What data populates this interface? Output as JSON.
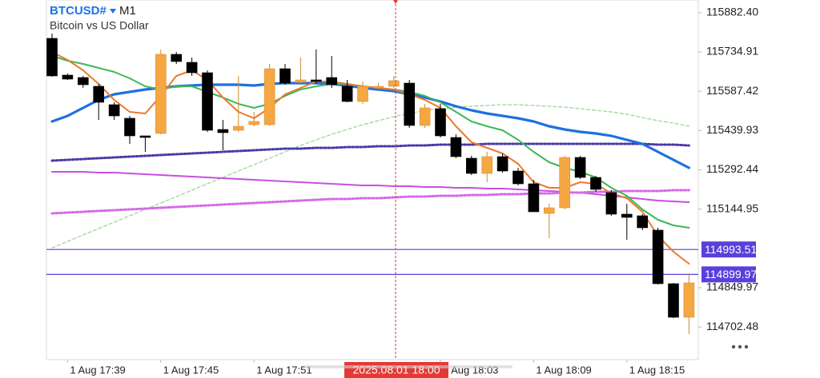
{
  "chart_data": {
    "type": "candlestick",
    "title": "BTCUSD#",
    "timeframe": "M1",
    "subtitle": "Bitcoin vs US Dollar",
    "crosshair_label": "2025.08.01 18:00",
    "categories": [
      null,
      "1 Aug 17:39",
      null,
      null,
      null,
      null,
      null,
      "1 Aug 17:45",
      null,
      null,
      null,
      null,
      null,
      "1 Aug 17:51",
      null,
      null,
      null,
      null,
      null,
      null,
      null,
      null,
      null,
      null,
      null,
      "1 Aug 18:03",
      null,
      null,
      null,
      null,
      null,
      "1 Aug 18:09",
      null,
      null,
      null,
      null,
      null,
      "1 Aug 18:15",
      null,
      null,
      null,
      null
    ],
    "open": [
      115786,
      115648,
      115639,
      115606,
      115537,
      115486,
      115420,
      115429,
      115726,
      115696,
      115657,
      115444,
      115441,
      115462,
      115462,
      115672,
      115621,
      115630,
      115639,
      115606,
      115549,
      115600,
      115606,
      115618,
      115459,
      115522,
      115414,
      115336,
      115279,
      115342,
      115288,
      115240,
      115129,
      115150,
      115339,
      115264,
      115207,
      115126,
      115120,
      115066,
      114865,
      114739
    ],
    "high": [
      115804,
      115654,
      115645,
      115615,
      115546,
      115495,
      115420,
      115744,
      115735,
      115714,
      115666,
      115480,
      115645,
      115510,
      115690,
      115690,
      115714,
      115744,
      115720,
      115630,
      115624,
      115618,
      115645,
      115630,
      115540,
      115540,
      115426,
      115345,
      115360,
      115354,
      115300,
      115255,
      115165,
      115345,
      115345,
      115270,
      115216,
      115165,
      115126,
      115075,
      114868,
      114904
    ],
    "low": [
      115642,
      115630,
      115600,
      115480,
      115480,
      115390,
      115360,
      115426,
      115690,
      115645,
      115435,
      115366,
      115435,
      115456,
      115456,
      115612,
      115618,
      115615,
      115600,
      115546,
      115540,
      115594,
      115600,
      115450,
      115450,
      115414,
      115336,
      115273,
      115246,
      115282,
      115234,
      115135,
      115036,
      115144,
      115258,
      115210,
      115120,
      115030,
      115066,
      114862,
      114736,
      114676
    ],
    "close": [
      115645,
      115633,
      115612,
      115546,
      115495,
      115420,
      115414,
      115726,
      115699,
      115657,
      115441,
      115432,
      115456,
      115474,
      115672,
      115618,
      115630,
      115624,
      115612,
      115549,
      115606,
      115606,
      115627,
      115459,
      115525,
      115420,
      115342,
      115279,
      115342,
      115288,
      115240,
      115135,
      115150,
      115339,
      115264,
      115219,
      115126,
      115114,
      115075,
      114865,
      114739,
      114868
    ],
    "up_color": "#f5a742",
    "down_color": "#000000",
    "series": [
      {
        "color": "#9fd59a",
        "style": "dashed",
        "values": [
          114999,
          115024,
          115048,
          115072,
          115096,
          115120,
          115144,
          115168,
          115192,
          115216,
          115240,
          115264,
          115288,
          115312,
          115336,
          115360,
          115384,
          115405,
          115426,
          115444,
          115462,
          115477,
          115492,
          115504,
          115516,
          115522,
          115528,
          115531,
          115534,
          115537,
          115537,
          115534,
          115531,
          115528,
          115522,
          115516,
          115510,
          115501,
          115489,
          115477,
          115468,
          115456
        ]
      },
      {
        "color": "#c84fe0",
        "style": "solid",
        "values": [
          115285,
          115285,
          115285,
          115282,
          115282,
          115279,
          115276,
          115273,
          115270,
          115267,
          115264,
          115261,
          115258,
          115255,
          115252,
          115249,
          115246,
          115243,
          115240,
          115237,
          115234,
          115234,
          115231,
          115231,
          115228,
          115228,
          115225,
          115225,
          115222,
          115222,
          115219,
          115216,
          115213,
          115210,
          115207,
          115201,
          115195,
          115189,
          115183,
          115177,
          115174,
          115171
        ]
      },
      {
        "color": "#d46ae8",
        "style": "dotted",
        "values": [
          115129,
          115132,
          115135,
          115138,
          115141,
          115144,
          115147,
          115150,
          115153,
          115156,
          115159,
          115162,
          115165,
          115168,
          115171,
          115174,
          115177,
          115180,
          115183,
          115183,
          115186,
          115186,
          115189,
          115192,
          115192,
          115195,
          115195,
          115198,
          115198,
          115201,
          115201,
          115204,
          115204,
          115207,
          115207,
          115210,
          115210,
          115213,
          115213,
          115213,
          115216,
          115216
        ]
      },
      {
        "color": "#4b3aa8",
        "style": "dotted",
        "values": [
          115327,
          115330,
          115333,
          115336,
          115339,
          115342,
          115345,
          115348,
          115351,
          115354,
          115357,
          115360,
          115363,
          115366,
          115369,
          115372,
          115372,
          115375,
          115375,
          115378,
          115378,
          115381,
          115381,
          115384,
          115384,
          115387,
          115387,
          115387,
          115390,
          115390,
          115390,
          115390,
          115390,
          115390,
          115390,
          115390,
          115390,
          115390,
          115390,
          115387,
          115387,
          115384
        ]
      },
      {
        "color": "#1f6fe0",
        "style": "thick",
        "values": [
          115474,
          115495,
          115525,
          115555,
          115576,
          115585,
          115594,
          115600,
          115606,
          115609,
          115612,
          115612,
          115612,
          115609,
          115615,
          115618,
          115618,
          115618,
          115615,
          115609,
          115600,
          115594,
          115588,
          115576,
          115564,
          115549,
          115531,
          115516,
          115504,
          115495,
          115486,
          115474,
          115456,
          115444,
          115435,
          115429,
          115420,
          115405,
          115390,
          115360,
          115330,
          115300
        ]
      },
      {
        "color": "#3cb85a",
        "style": "solid",
        "values": [
          115720,
          115702,
          115690,
          115675,
          115660,
          115636,
          115606,
          115594,
          115606,
          115606,
          115585,
          115564,
          115540,
          115525,
          115540,
          115570,
          115594,
          115606,
          115615,
          115615,
          115606,
          115600,
          115594,
          115585,
          115570,
          115546,
          115510,
          115474,
          115456,
          115441,
          115405,
          115360,
          115321,
          115300,
          115285,
          115264,
          115225,
          115195,
          115144,
          115105,
          115084,
          115075
        ]
      },
      {
        "color": "#ec7a2e",
        "style": "solid",
        "values": [
          115735,
          115705,
          115666,
          115615,
          115555,
          115510,
          115504,
          115570,
          115645,
          115666,
          115630,
          115564,
          115510,
          115486,
          115525,
          115576,
          115600,
          115624,
          115624,
          115615,
          115606,
          115600,
          115594,
          115576,
          115555,
          115525,
          115456,
          115396,
          115375,
          115354,
          115315,
          115246,
          115225,
          115225,
          115246,
          115240,
          115204,
          115186,
          115135,
          115045,
          114985,
          114940
        ]
      }
    ],
    "price_lines": [
      {
        "value": 114993.51,
        "color": "#5b3fdc"
      },
      {
        "value": 114899.97,
        "color": "#5b3fdc"
      }
    ],
    "ylim": [
      114580,
      115930
    ],
    "yticks": [
      {
        "value": 115882.4,
        "label": "115882.40"
      },
      115734.91,
      115587.42,
      115439.93,
      115292.44,
      115144.95,
      114849.97,
      114702.48
    ]
  }
}
